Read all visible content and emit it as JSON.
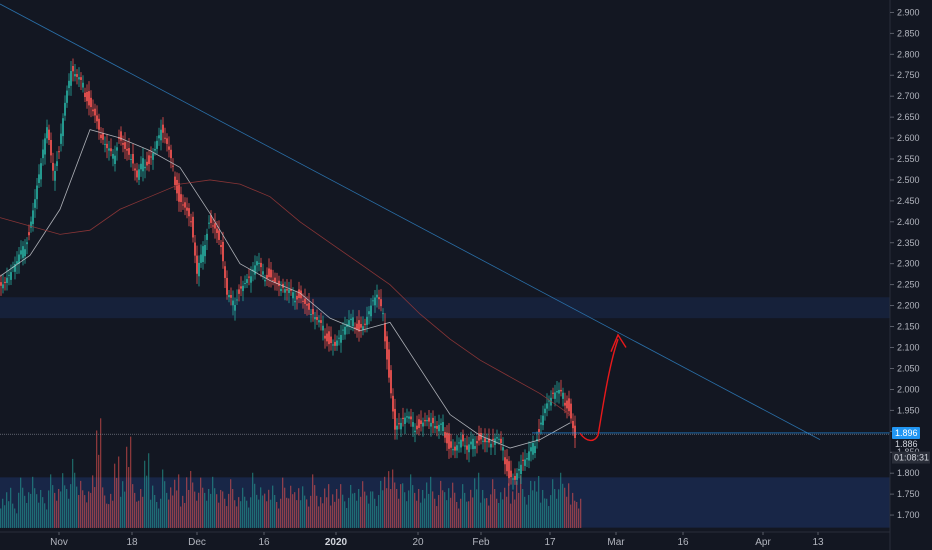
{
  "chart_data": {
    "type": "candlestick",
    "title": "",
    "xlabel": "",
    "ylabel": "",
    "ylim": [
      1.65,
      2.92
    ],
    "price_ticks": [
      "2.900",
      "2.850",
      "2.800",
      "2.750",
      "2.700",
      "2.650",
      "2.600",
      "2.550",
      "2.500",
      "2.450",
      "2.400",
      "2.350",
      "2.300",
      "2.250",
      "2.200",
      "2.150",
      "2.100",
      "2.050",
      "2.000",
      "1.950",
      "1.900",
      "1.850",
      "1.800",
      "1.750",
      "1.700"
    ],
    "date_ticks": [
      "Nov",
      "18",
      "Dec",
      "16",
      "2020",
      "20",
      "Feb",
      "17",
      "Mar",
      "16",
      "Apr",
      "13"
    ],
    "series": [
      {
        "name": "",
        "kind": "price",
        "x": [
          0,
          6,
          12,
          18,
          24,
          30,
          36,
          42,
          48,
          54,
          60,
          66,
          72,
          78,
          84,
          90,
          96,
          102,
          108,
          114,
          120,
          126,
          132,
          138,
          144,
          150,
          156,
          162,
          168,
          174,
          180,
          186,
          192,
          198,
          204,
          210,
          216,
          222,
          228,
          234,
          240,
          246,
          252,
          258,
          264,
          270,
          276,
          282,
          288,
          294,
          300,
          306,
          312,
          318,
          324,
          330,
          336,
          342,
          348,
          354,
          360,
          366,
          372,
          378,
          384,
          390,
          396,
          402,
          408,
          414,
          420,
          426,
          432,
          438,
          444,
          450,
          456,
          462,
          468,
          474,
          480,
          486,
          492,
          498,
          504,
          510,
          516,
          522,
          528,
          534,
          540,
          546,
          552,
          558,
          564,
          570,
          576
        ],
        "values": [
          2.25,
          2.26,
          2.28,
          2.3,
          2.33,
          2.38,
          2.46,
          2.54,
          2.62,
          2.51,
          2.58,
          2.69,
          2.76,
          2.74,
          2.72,
          2.69,
          2.66,
          2.6,
          2.57,
          2.55,
          2.61,
          2.58,
          2.55,
          2.5,
          2.54,
          2.55,
          2.58,
          2.62,
          2.58,
          2.52,
          2.46,
          2.44,
          2.4,
          2.27,
          2.33,
          2.41,
          2.39,
          2.34,
          2.22,
          2.2,
          2.24,
          2.26,
          2.27,
          2.3,
          2.27,
          2.28,
          2.26,
          2.24,
          2.23,
          2.22,
          2.23,
          2.21,
          2.18,
          2.16,
          2.14,
          2.12,
          2.11,
          2.13,
          2.15,
          2.16,
          2.15,
          2.16,
          2.2,
          2.22,
          2.17,
          2.04,
          1.91,
          1.92,
          1.93,
          1.91,
          1.92,
          1.93,
          1.92,
          1.9,
          1.91,
          1.87,
          1.86,
          1.88,
          1.85,
          1.87,
          1.89,
          1.88,
          1.87,
          1.88,
          1.85,
          1.8,
          1.79,
          1.82,
          1.83,
          1.86,
          1.91,
          1.96,
          1.98,
          1.99,
          1.98,
          1.96,
          1.89
        ]
      },
      {
        "name": "",
        "kind": "moving-average-fast",
        "x": [
          0,
          30,
          60,
          90,
          120,
          150,
          180,
          210,
          240,
          270,
          300,
          330,
          360,
          390,
          420,
          450,
          480,
          510,
          540,
          570
        ],
        "values": [
          2.27,
          2.32,
          2.43,
          2.62,
          2.6,
          2.57,
          2.53,
          2.42,
          2.3,
          2.26,
          2.23,
          2.17,
          2.14,
          2.16,
          2.05,
          1.94,
          1.89,
          1.86,
          1.88,
          1.92
        ]
      },
      {
        "name": "",
        "kind": "moving-average-slow",
        "x": [
          0,
          30,
          60,
          90,
          120,
          150,
          180,
          210,
          240,
          270,
          300,
          330,
          360,
          390,
          420,
          450,
          480,
          510,
          540,
          570
        ],
        "values": [
          2.41,
          2.39,
          2.37,
          2.38,
          2.43,
          2.46,
          2.49,
          2.5,
          2.49,
          2.46,
          2.4,
          2.35,
          2.3,
          2.25,
          2.18,
          2.12,
          2.07,
          2.03,
          1.99,
          1.94
        ]
      },
      {
        "name": "",
        "kind": "volume",
        "x": [
          0,
          6,
          12,
          18,
          24,
          30,
          36,
          42,
          48,
          54,
          60,
          66,
          72,
          78,
          84,
          90,
          96,
          102,
          108,
          114,
          120,
          126,
          132,
          138,
          144,
          150,
          156,
          162,
          168,
          174,
          180,
          186,
          192,
          198,
          204,
          210,
          216,
          222,
          228,
          234,
          240,
          246,
          252,
          258,
          264,
          270,
          276,
          282,
          288,
          294,
          300,
          306,
          312,
          318,
          324,
          330,
          336,
          342,
          348,
          354,
          360,
          366,
          372,
          378,
          384,
          390,
          396,
          402,
          408,
          414,
          420,
          426,
          432,
          438,
          444,
          450,
          456,
          462,
          468,
          474,
          480,
          486,
          492,
          498,
          504,
          510,
          516,
          522,
          528,
          534,
          540,
          546,
          552,
          558,
          564,
          570,
          576
        ],
        "values": [
          40,
          55,
          30,
          62,
          44,
          70,
          52,
          38,
          66,
          48,
          75,
          60,
          85,
          58,
          45,
          72,
          150,
          50,
          42,
          88,
          64,
          125,
          54,
          48,
          92,
          58,
          40,
          72,
          50,
          66,
          44,
          78,
          56,
          62,
          48,
          70,
          52,
          45,
          60,
          38,
          55,
          42,
          68,
          50,
          47,
          58,
          40,
          62,
          52,
          49,
          57,
          44,
          66,
          38,
          54,
          46,
          60,
          41,
          53,
          48,
          64,
          50,
          45,
          58,
          70,
          80,
          60,
          55,
          66,
          48,
          52,
          70,
          45,
          58,
          49,
          62,
          40,
          54,
          47,
          68,
          52,
          46,
          60,
          44,
          55,
          50,
          72,
          48,
          58,
          64,
          52,
          45,
          60,
          68,
          55,
          48,
          40
        ]
      }
    ],
    "current_price": "1.896",
    "marker_price": "1.886",
    "countdown": "01:08:31",
    "trendline_color": "#2a6fa8",
    "colors": {
      "up": "#26a69a",
      "down": "#ef5350",
      "annotation": "#e8191b",
      "price_label": "#2196f3",
      "demand_zone": "#1e3366"
    },
    "zones": [
      {
        "from": 1.67,
        "to": 1.79
      },
      {
        "from": 2.17,
        "to": 2.22
      }
    ]
  }
}
